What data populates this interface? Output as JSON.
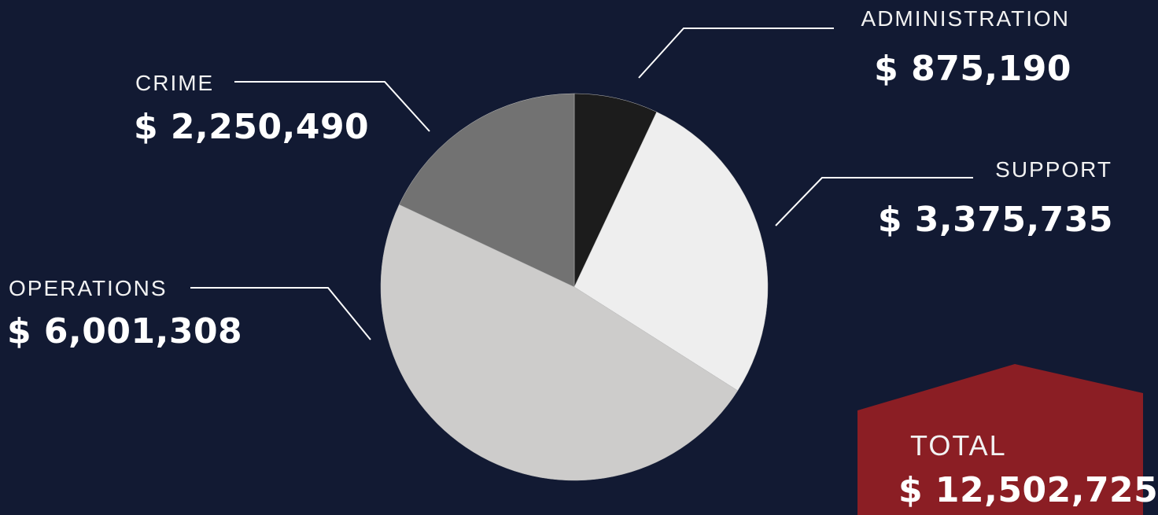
{
  "chart_data": {
    "type": "pie",
    "slices": [
      {
        "label": "ADMINISTRATION",
        "value": 875190,
        "value_label": "$ 875,190",
        "color": "#1c1c1c"
      },
      {
        "label": "SUPPORT",
        "value": 3375735,
        "value_label": "$ 3,375,735",
        "color": "#eeeeee"
      },
      {
        "label": "OPERATIONS",
        "value": 6001308,
        "value_label": "$ 6,001,308",
        "color": "#cdcccb"
      },
      {
        "label": "CRIME",
        "value": 2250490,
        "value_label": "$ 2,250,490",
        "color": "#727272"
      }
    ],
    "total": {
      "label": "TOTAL",
      "value": 12502725,
      "value_label": "$ 12,502,725",
      "color": "#8b1e24"
    }
  }
}
